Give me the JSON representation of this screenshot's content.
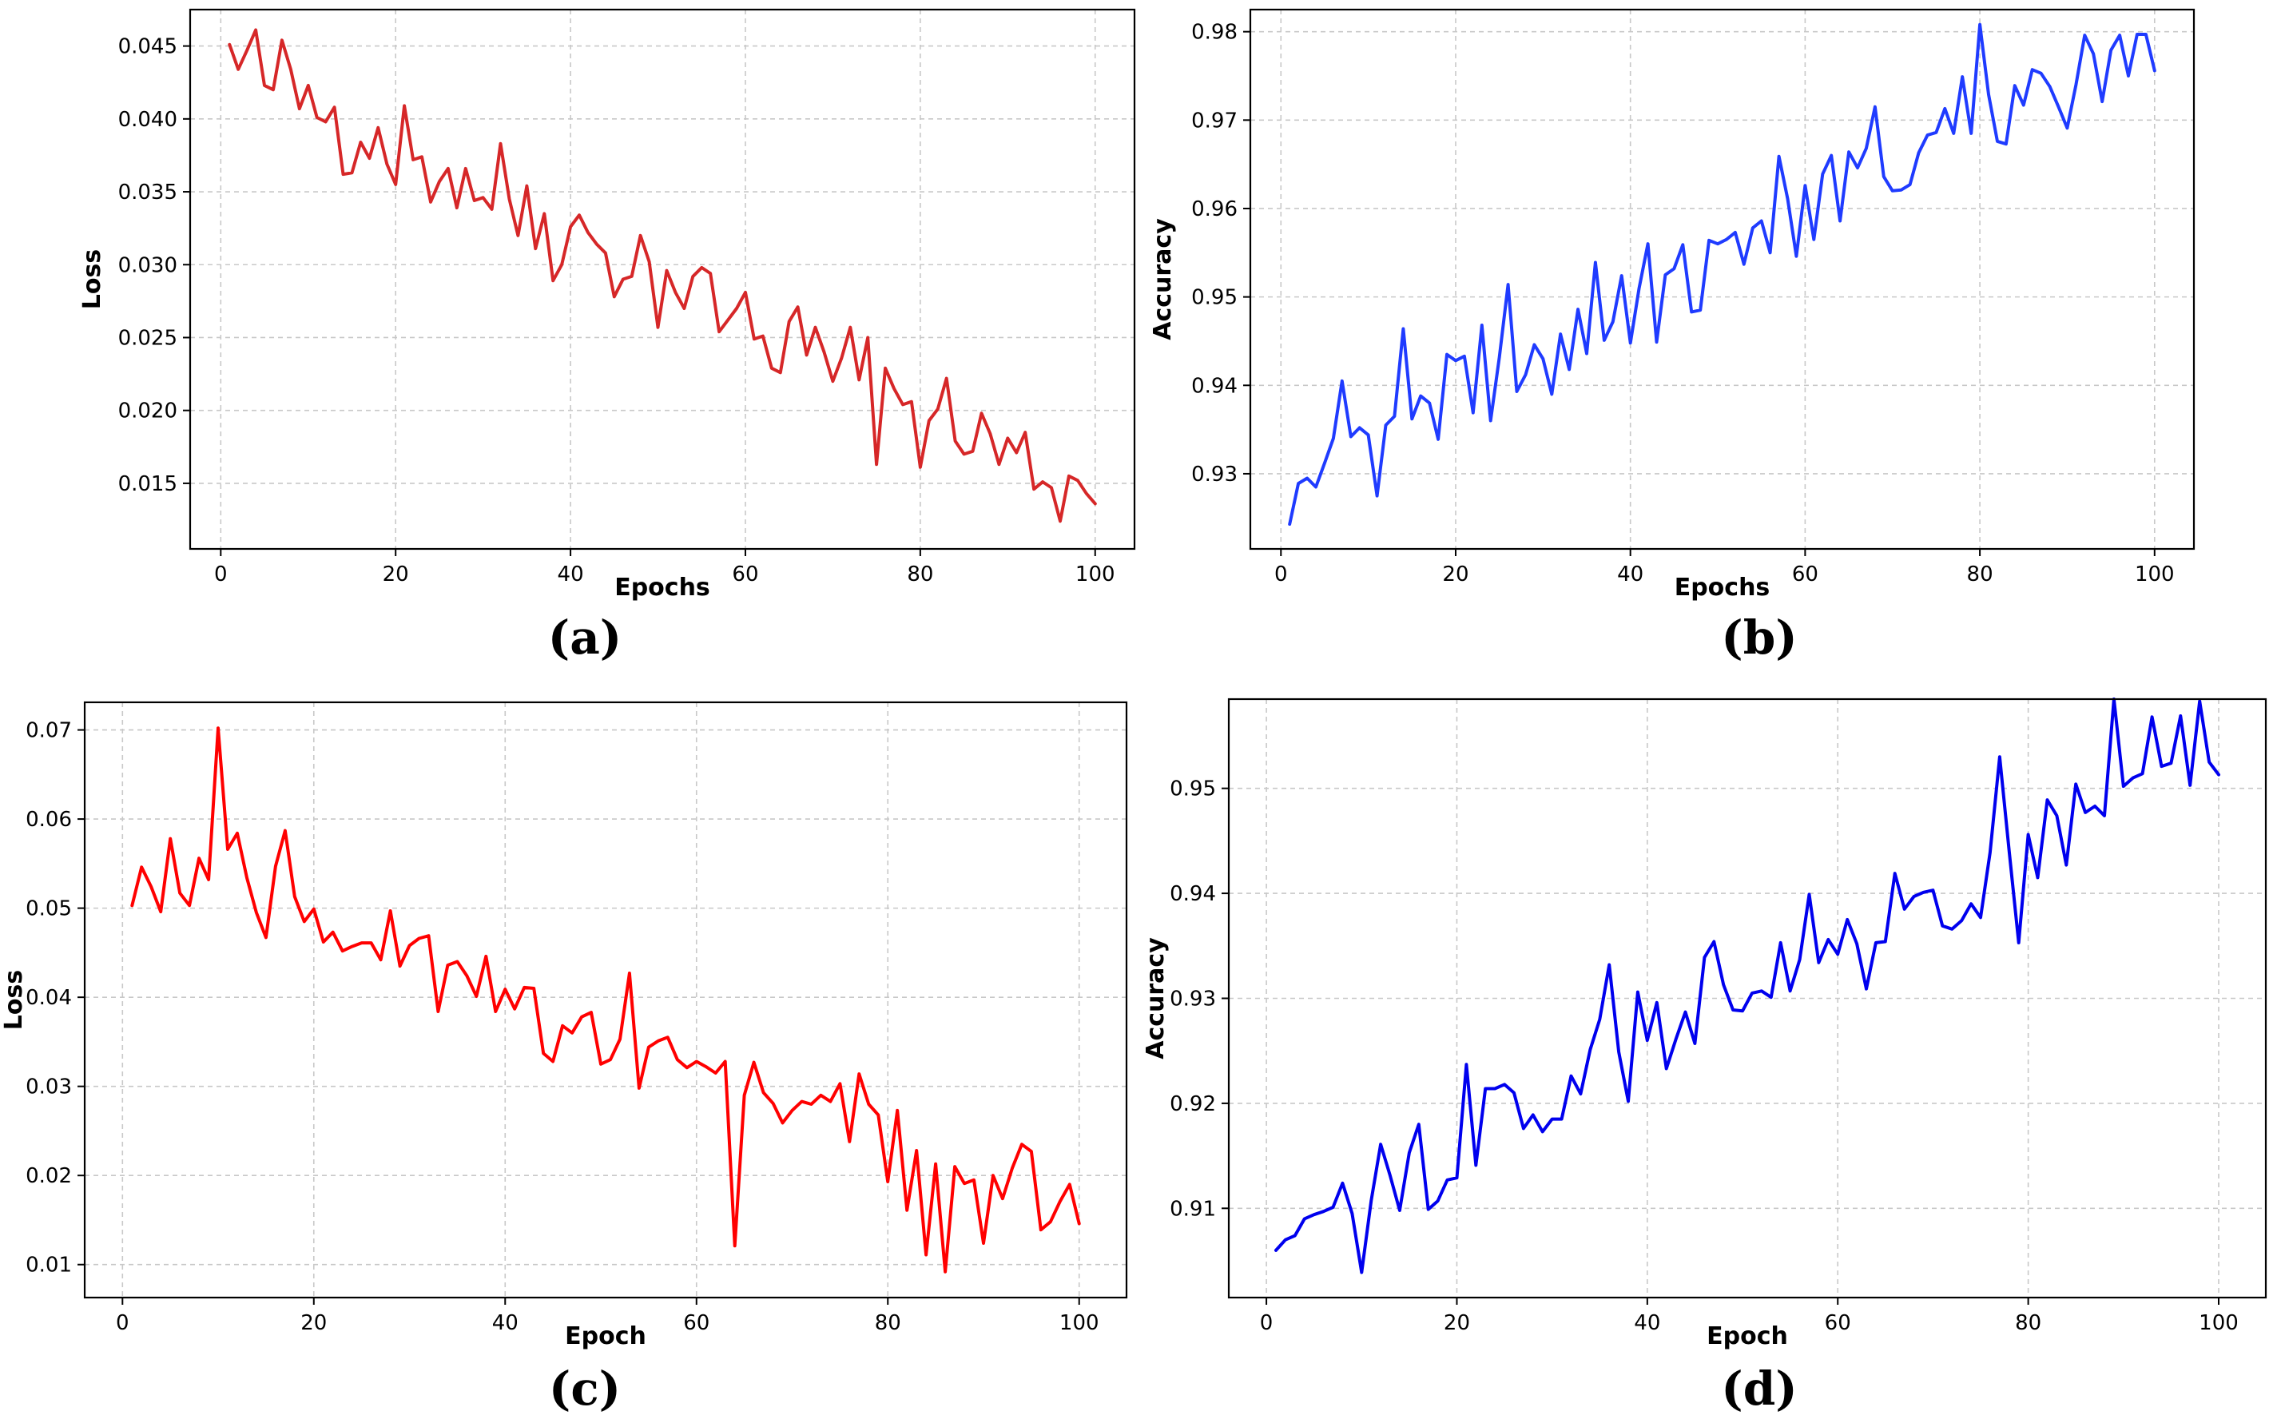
{
  "chart_data": [
    {
      "type": "line",
      "panel_label": "(a)",
      "title": "",
      "xlabel": "Epochs",
      "ylabel": "Loss",
      "xlim": [
        -3.5,
        104.5
      ],
      "ylim": [
        0.0105,
        0.0475
      ],
      "xticks": [
        0,
        20,
        40,
        60,
        80,
        100
      ],
      "yticks": [
        0.015,
        0.02,
        0.025,
        0.03,
        0.035,
        0.04,
        0.045
      ],
      "ytick_labels": [
        "0.015",
        "0.020",
        "0.025",
        "0.030",
        "0.035",
        "0.040",
        "0.045"
      ],
      "grid": true,
      "series": [
        {
          "name": "loss",
          "color": "#d62728",
          "x": [
            1,
            2,
            3,
            4,
            5,
            6,
            7,
            8,
            9,
            10,
            11,
            12,
            13,
            14,
            15,
            16,
            17,
            18,
            19,
            20,
            21,
            22,
            23,
            24,
            25,
            26,
            27,
            28,
            29,
            30,
            31,
            32,
            33,
            34,
            35,
            36,
            37,
            38,
            39,
            40,
            41,
            42,
            43,
            44,
            45,
            46,
            47,
            48,
            49,
            50,
            51,
            52,
            53,
            54,
            55,
            56,
            57,
            58,
            59,
            60,
            61,
            62,
            63,
            64,
            65,
            66,
            67,
            68,
            69,
            70,
            71,
            72,
            73,
            74,
            75,
            76,
            77,
            78,
            79,
            80,
            81,
            82,
            83,
            84,
            85,
            86,
            87,
            88,
            89,
            90,
            91,
            92,
            93,
            94,
            95,
            96,
            97,
            98,
            99,
            100
          ],
          "y": [
            0.0451,
            0.0434,
            0.0447,
            0.0461,
            0.0423,
            0.042,
            0.0454,
            0.0434,
            0.0407,
            0.0423,
            0.0401,
            0.0398,
            0.0408,
            0.0362,
            0.0363,
            0.0384,
            0.0373,
            0.0394,
            0.0369,
            0.0355,
            0.0409,
            0.0372,
            0.0374,
            0.0343,
            0.0357,
            0.0366,
            0.0339,
            0.0366,
            0.0344,
            0.0346,
            0.0338,
            0.0383,
            0.0345,
            0.032,
            0.0354,
            0.0311,
            0.0335,
            0.0289,
            0.03,
            0.0326,
            0.0334,
            0.0322,
            0.0314,
            0.0308,
            0.0278,
            0.029,
            0.0292,
            0.032,
            0.0302,
            0.0257,
            0.0296,
            0.0281,
            0.027,
            0.0292,
            0.0298,
            0.0294,
            0.0254,
            0.0262,
            0.027,
            0.0281,
            0.0249,
            0.0251,
            0.0229,
            0.0226,
            0.0261,
            0.0271,
            0.0238,
            0.0257,
            0.024,
            0.022,
            0.0236,
            0.0257,
            0.0221,
            0.025,
            0.0163,
            0.0229,
            0.0215,
            0.0204,
            0.0206,
            0.0161,
            0.0193,
            0.0201,
            0.0222,
            0.0179,
            0.017,
            0.0172,
            0.0198,
            0.0184,
            0.0163,
            0.0181,
            0.0171,
            0.0185,
            0.0146,
            0.0151,
            0.0147,
            0.0124,
            0.0155,
            0.0152,
            0.0143,
            0.0136
          ]
        }
      ]
    },
    {
      "type": "line",
      "panel_label": "(b)",
      "title": "",
      "xlabel": "Epochs",
      "ylabel": "Accuracy",
      "xlim": [
        -3.5,
        104.5
      ],
      "ylim": [
        0.9215,
        0.9825
      ],
      "xticks": [
        0,
        20,
        40,
        60,
        80,
        100
      ],
      "yticks": [
        0.93,
        0.94,
        0.95,
        0.96,
        0.97,
        0.98
      ],
      "ytick_labels": [
        "0.93",
        "0.94",
        "0.95",
        "0.96",
        "0.97",
        "0.98"
      ],
      "grid": true,
      "series": [
        {
          "name": "accuracy",
          "color": "#1f3bff",
          "x": [
            1,
            2,
            3,
            4,
            5,
            6,
            7,
            8,
            9,
            10,
            11,
            12,
            13,
            14,
            15,
            16,
            17,
            18,
            19,
            20,
            21,
            22,
            23,
            24,
            25,
            26,
            27,
            28,
            29,
            30,
            31,
            32,
            33,
            34,
            35,
            36,
            37,
            38,
            39,
            40,
            41,
            42,
            43,
            44,
            45,
            46,
            47,
            48,
            49,
            50,
            51,
            52,
            53,
            54,
            55,
            56,
            57,
            58,
            59,
            60,
            61,
            62,
            63,
            64,
            65,
            66,
            67,
            68,
            69,
            70,
            71,
            72,
            73,
            74,
            75,
            76,
            77,
            78,
            79,
            80,
            81,
            82,
            83,
            84,
            85,
            86,
            87,
            88,
            89,
            90,
            91,
            92,
            93,
            94,
            95,
            96,
            97,
            98,
            99,
            100
          ],
          "y": [
            0.9243,
            0.9289,
            0.9295,
            0.9285,
            0.9312,
            0.934,
            0.9405,
            0.9342,
            0.9352,
            0.9344,
            0.9275,
            0.9355,
            0.9365,
            0.9464,
            0.9362,
            0.9388,
            0.938,
            0.9339,
            0.9435,
            0.9428,
            0.9433,
            0.9369,
            0.9468,
            0.936,
            0.9432,
            0.9514,
            0.9393,
            0.9412,
            0.9446,
            0.943,
            0.939,
            0.9458,
            0.9418,
            0.9486,
            0.9436,
            0.9539,
            0.9451,
            0.9472,
            0.9524,
            0.9448,
            0.951,
            0.956,
            0.9449,
            0.9525,
            0.9532,
            0.9559,
            0.9483,
            0.9485,
            0.9564,
            0.956,
            0.9565,
            0.9573,
            0.9537,
            0.9578,
            0.9586,
            0.955,
            0.9659,
            0.9611,
            0.9546,
            0.9626,
            0.9565,
            0.9639,
            0.966,
            0.9586,
            0.9664,
            0.9646,
            0.9668,
            0.9715,
            0.9636,
            0.962,
            0.9621,
            0.9627,
            0.9663,
            0.9683,
            0.9686,
            0.9713,
            0.9685,
            0.9749,
            0.9685,
            0.9808,
            0.9729,
            0.9676,
            0.9673,
            0.9739,
            0.9717,
            0.9757,
            0.9753,
            0.9738,
            0.9715,
            0.9691,
            0.974,
            0.9796,
            0.9775,
            0.9721,
            0.9779,
            0.9796,
            0.975,
            0.9797,
            0.9797,
            0.9756
          ]
        }
      ]
    },
    {
      "type": "line",
      "panel_label": "(c)",
      "title": "",
      "xlabel": "Epoch",
      "ylabel": "Loss",
      "xlim": [
        -3.95,
        104.95
      ],
      "ylim": [
        0.0063,
        0.0731
      ],
      "xticks": [
        0,
        20,
        40,
        60,
        80,
        100
      ],
      "yticks": [
        0.01,
        0.02,
        0.03,
        0.04,
        0.05,
        0.06,
        0.07
      ],
      "ytick_labels": [
        "0.01",
        "0.02",
        "0.03",
        "0.04",
        "0.05",
        "0.06",
        "0.07"
      ],
      "grid": true,
      "series": [
        {
          "name": "loss",
          "color": "#ff0000",
          "x": [
            1,
            2,
            3,
            4,
            5,
            6,
            7,
            8,
            9,
            10,
            11,
            12,
            13,
            14,
            15,
            16,
            17,
            18,
            19,
            20,
            21,
            22,
            23,
            24,
            25,
            26,
            27,
            28,
            29,
            30,
            31,
            32,
            33,
            34,
            35,
            36,
            37,
            38,
            39,
            40,
            41,
            42,
            43,
            44,
            45,
            46,
            47,
            48,
            49,
            50,
            51,
            52,
            53,
            54,
            55,
            56,
            57,
            58,
            59,
            60,
            61,
            62,
            63,
            64,
            65,
            66,
            67,
            68,
            69,
            70,
            71,
            72,
            73,
            74,
            75,
            76,
            77,
            78,
            79,
            80,
            81,
            82,
            83,
            84,
            85,
            86,
            87,
            88,
            89,
            90,
            91,
            92,
            93,
            94,
            95,
            96,
            97,
            98,
            99,
            100
          ],
          "y": [
            0.0503,
            0.0546,
            0.0524,
            0.0496,
            0.0578,
            0.0517,
            0.0503,
            0.0556,
            0.0532,
            0.0702,
            0.0566,
            0.0584,
            0.0534,
            0.0495,
            0.0467,
            0.0547,
            0.0587,
            0.0513,
            0.0485,
            0.0499,
            0.0462,
            0.0473,
            0.0452,
            0.0457,
            0.0461,
            0.0461,
            0.0442,
            0.0497,
            0.0435,
            0.0458,
            0.0466,
            0.0469,
            0.0384,
            0.0436,
            0.044,
            0.0424,
            0.0401,
            0.0446,
            0.0384,
            0.0409,
            0.0387,
            0.0411,
            0.041,
            0.0337,
            0.0328,
            0.0368,
            0.036,
            0.0378,
            0.0383,
            0.0325,
            0.033,
            0.0353,
            0.0427,
            0.0298,
            0.0344,
            0.0351,
            0.0355,
            0.033,
            0.0321,
            0.0328,
            0.0322,
            0.0315,
            0.0328,
            0.0121,
            0.029,
            0.0327,
            0.0293,
            0.0281,
            0.0259,
            0.0273,
            0.0283,
            0.028,
            0.029,
            0.0283,
            0.0303,
            0.0238,
            0.0314,
            0.028,
            0.0268,
            0.0193,
            0.0273,
            0.0161,
            0.0228,
            0.0111,
            0.0213,
            0.0092,
            0.021,
            0.0191,
            0.0195,
            0.0124,
            0.02,
            0.0174,
            0.0208,
            0.0235,
            0.0227,
            0.0139,
            0.0148,
            0.0171,
            0.019,
            0.0146
          ]
        }
      ]
    },
    {
      "type": "line",
      "panel_label": "(d)",
      "title": "",
      "xlabel": "Epoch",
      "ylabel": "Accuracy",
      "xlim": [
        -3.95,
        104.95
      ],
      "ylim": [
        0.9015,
        0.9585
      ],
      "xticks": [
        0,
        20,
        40,
        60,
        80,
        100
      ],
      "yticks": [
        0.91,
        0.92,
        0.93,
        0.94,
        0.95
      ],
      "ytick_labels": [
        "0.91",
        "0.92",
        "0.93",
        "0.94",
        "0.95"
      ],
      "grid": true,
      "series": [
        {
          "name": "accuracy",
          "color": "#0000ee",
          "x": [
            1,
            2,
            3,
            4,
            5,
            6,
            7,
            8,
            9,
            10,
            11,
            12,
            13,
            14,
            15,
            16,
            17,
            18,
            19,
            20,
            21,
            22,
            23,
            24,
            25,
            26,
            27,
            28,
            29,
            30,
            31,
            32,
            33,
            34,
            35,
            36,
            37,
            38,
            39,
            40,
            41,
            42,
            43,
            44,
            45,
            46,
            47,
            48,
            49,
            50,
            51,
            52,
            53,
            54,
            55,
            56,
            57,
            58,
            59,
            60,
            61,
            62,
            63,
            64,
            65,
            66,
            67,
            68,
            69,
            70,
            71,
            72,
            73,
            74,
            75,
            76,
            77,
            78,
            79,
            80,
            81,
            82,
            83,
            84,
            85,
            86,
            87,
            88,
            89,
            90,
            91,
            92,
            93,
            94,
            95,
            96,
            97,
            98,
            99,
            100
          ],
          "y": [
            0.906,
            0.907,
            0.9074,
            0.909,
            0.9094,
            0.9097,
            0.9101,
            0.9124,
            0.9095,
            0.9039,
            0.9107,
            0.9161,
            0.9131,
            0.9098,
            0.9153,
            0.918,
            0.9099,
            0.9107,
            0.9127,
            0.9129,
            0.9237,
            0.9141,
            0.9214,
            0.9214,
            0.9218,
            0.921,
            0.9176,
            0.9189,
            0.9173,
            0.9185,
            0.9185,
            0.9226,
            0.9209,
            0.9251,
            0.928,
            0.9332,
            0.9249,
            0.9202,
            0.9306,
            0.926,
            0.9296,
            0.9233,
            0.9261,
            0.9287,
            0.9257,
            0.9339,
            0.9354,
            0.9313,
            0.9289,
            0.9288,
            0.9305,
            0.9307,
            0.9301,
            0.9353,
            0.9307,
            0.9337,
            0.9399,
            0.9334,
            0.9356,
            0.9342,
            0.9375,
            0.9352,
            0.9309,
            0.9353,
            0.9354,
            0.9419,
            0.9385,
            0.9397,
            0.9401,
            0.9403,
            0.9369,
            0.9366,
            0.9374,
            0.939,
            0.9377,
            0.9439,
            0.953,
            0.944,
            0.9353,
            0.9456,
            0.9415,
            0.9489,
            0.9474,
            0.9427,
            0.9504,
            0.9477,
            0.9483,
            0.9474,
            0.9585,
            0.9502,
            0.951,
            0.9514,
            0.9568,
            0.9521,
            0.9524,
            0.9569,
            0.9503,
            0.9583,
            0.9525,
            0.9513
          ]
        }
      ]
    }
  ]
}
